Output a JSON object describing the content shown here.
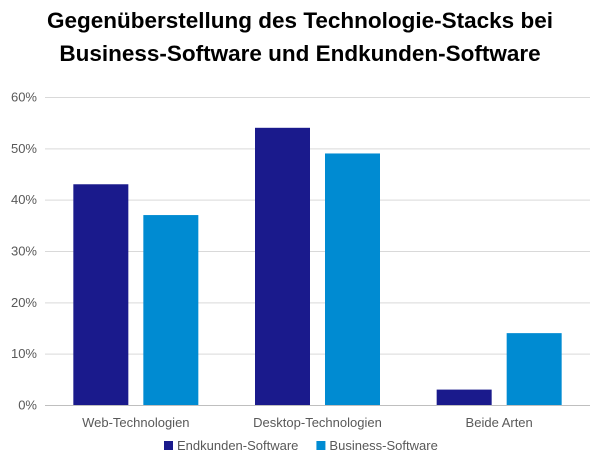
{
  "chart_data": {
    "type": "bar",
    "title_lines": [
      "Gegenüberstellung des Technologie-Stacks bei",
      "Business-Software und Endkunden-Software"
    ],
    "categories": [
      "Web-Technologien",
      "Desktop-Technologien",
      "Beide Arten"
    ],
    "series": [
      {
        "name": "Endkunden-Software",
        "color": "#1a1a8c",
        "values": [
          43,
          54,
          3
        ]
      },
      {
        "name": "Business-Software",
        "color": "#008bd2",
        "values": [
          37,
          49,
          14
        ]
      }
    ],
    "ylim": [
      0,
      60
    ],
    "yticks": [
      0,
      10,
      20,
      30,
      40,
      50,
      60
    ],
    "ytick_labels": [
      "0%",
      "10%",
      "20%",
      "30%",
      "40%",
      "50%",
      "60%"
    ],
    "grid": true,
    "legend_position": "bottom"
  }
}
